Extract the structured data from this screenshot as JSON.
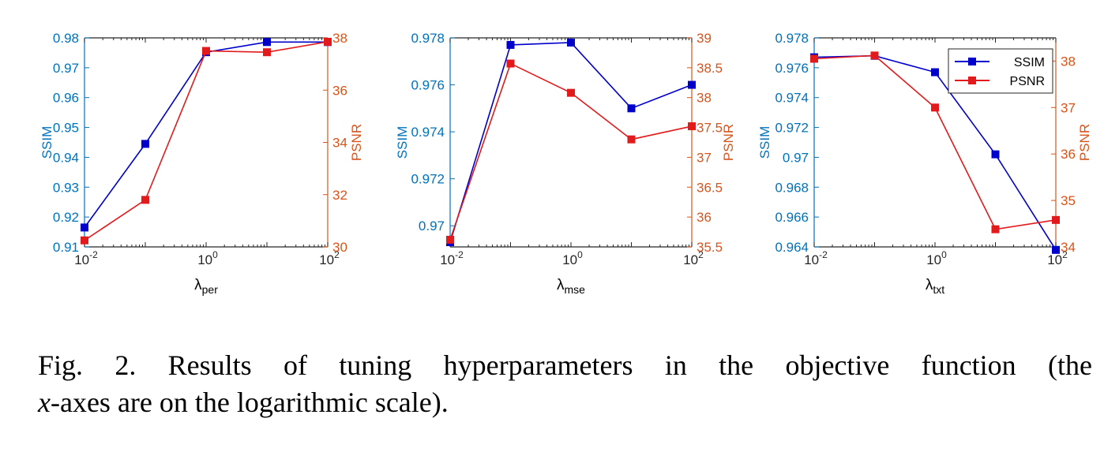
{
  "colors": {
    "ssim": "#0000cc",
    "psnr": "#e31a1c",
    "ssim_axis": "#0072bd",
    "psnr_axis": "#d95319",
    "axis": "#262626"
  },
  "caption": {
    "words": [
      "Fig.",
      "2.",
      "Results",
      "of",
      "tuning",
      "hyperparameters",
      "in",
      "the",
      "objective",
      "function",
      "(the"
    ],
    "x_var": "x",
    "line2_rest": "-axes are on the logarithmic scale)."
  },
  "chart_data": [
    {
      "type": "line",
      "x_scale": "log",
      "x": [
        0.01,
        0.1,
        1,
        10,
        100
      ],
      "xlim": [
        0.01,
        100
      ],
      "xticks": [
        "10",
        "10",
        "10"
      ],
      "xtick_exponents": [
        "-2",
        "0",
        "2"
      ],
      "xlabel": {
        "base": "λ",
        "sub": "per"
      },
      "ylabel_left": "SSIM",
      "ylabel_right": "PSNR",
      "ylim_left": [
        0.91,
        0.98
      ],
      "ylim_right": [
        30,
        38
      ],
      "yticks_left": [
        "0.91",
        "0.92",
        "0.93",
        "0.94",
        "0.95",
        "0.96",
        "0.97",
        "0.98"
      ],
      "yticks_right": [
        "30",
        "32",
        "34",
        "36",
        "38"
      ],
      "series": [
        {
          "name": "SSIM",
          "axis": "left",
          "values": [
            0.9165,
            0.9445,
            0.9752,
            0.9786,
            0.9786
          ]
        },
        {
          "name": "PSNR",
          "axis": "right",
          "values": [
            30.25,
            31.8,
            37.5,
            37.45,
            37.85
          ]
        }
      ]
    },
    {
      "type": "line",
      "x_scale": "log",
      "x": [
        0.01,
        0.1,
        1,
        10,
        100
      ],
      "xlim": [
        0.01,
        100
      ],
      "xticks": [
        "10",
        "10",
        "10"
      ],
      "xtick_exponents": [
        "-2",
        "0",
        "2"
      ],
      "xlabel": {
        "base": "λ",
        "sub": "mse"
      },
      "ylabel_left": "SSIM",
      "ylabel_right": "PSNR",
      "ylim_left": [
        0.9691,
        0.978
      ],
      "ylim_right": [
        35.5,
        39
      ],
      "yticks_left": [
        "0.97",
        "0.972",
        "0.974",
        "0.976",
        "0.978"
      ],
      "yticks_right": [
        "35.5",
        "36",
        "36.5",
        "37",
        "37.5",
        "38",
        "38.5",
        "39"
      ],
      "series": [
        {
          "name": "SSIM",
          "axis": "left",
          "values": [
            0.9693,
            0.9777,
            0.9778,
            0.975,
            0.976
          ]
        },
        {
          "name": "PSNR",
          "axis": "right",
          "values": [
            35.62,
            38.57,
            38.08,
            37.3,
            37.52
          ]
        }
      ]
    },
    {
      "type": "line",
      "x_scale": "log",
      "x": [
        0.01,
        0.1,
        1,
        10,
        100
      ],
      "xlim": [
        0.01,
        100
      ],
      "xticks": [
        "10",
        "10",
        "10"
      ],
      "xtick_exponents": [
        "-2",
        "0",
        "2"
      ],
      "xlabel": {
        "base": "λ",
        "sub": "txt"
      },
      "ylabel_left": "SSIM",
      "ylabel_right": "PSNR",
      "ylim_left": [
        0.964,
        0.978
      ],
      "ylim_right": [
        34,
        38.5
      ],
      "yticks_left": [
        "0.964",
        "0.966",
        "0.968",
        "0.97",
        "0.972",
        "0.974",
        "0.976",
        "0.978"
      ],
      "yticks_right": [
        "34",
        "35",
        "36",
        "37",
        "38"
      ],
      "legend": {
        "position": "top-right",
        "entries": [
          "SSIM",
          "PSNR"
        ]
      },
      "series": [
        {
          "name": "SSIM",
          "axis": "left",
          "values": [
            0.9767,
            0.9768,
            0.9757,
            0.9702,
            0.9638
          ]
        },
        {
          "name": "PSNR",
          "axis": "right",
          "values": [
            38.05,
            38.12,
            37.0,
            34.38,
            34.58
          ]
        }
      ]
    }
  ]
}
